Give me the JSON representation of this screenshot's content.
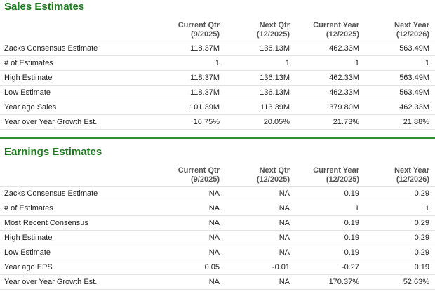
{
  "sections": [
    {
      "title": "Sales Estimates",
      "columns": [
        {
          "name": "Current Qtr",
          "period": "(9/2025)"
        },
        {
          "name": "Next Qtr",
          "period": "(12/2025)"
        },
        {
          "name": "Current Year",
          "period": "(12/2025)"
        },
        {
          "name": "Next Year",
          "period": "(12/2026)"
        }
      ],
      "rows": [
        [
          "Zacks Consensus Estimate",
          "118.37M",
          "136.13M",
          "462.33M",
          "563.49M"
        ],
        [
          "# of Estimates",
          "1",
          "1",
          "1",
          "1"
        ],
        [
          "High Estimate",
          "118.37M",
          "136.13M",
          "462.33M",
          "563.49M"
        ],
        [
          "Low Estimate",
          "118.37M",
          "136.13M",
          "462.33M",
          "563.49M"
        ],
        [
          "Year ago Sales",
          "101.39M",
          "113.39M",
          "379.80M",
          "462.33M"
        ],
        [
          "Year over Year Growth Est.",
          "16.75%",
          "20.05%",
          "21.73%",
          "21.88%"
        ]
      ]
    },
    {
      "title": "Earnings Estimates",
      "columns": [
        {
          "name": "Current Qtr",
          "period": "(9/2025)"
        },
        {
          "name": "Next Qtr",
          "period": "(12/2025)"
        },
        {
          "name": "Current Year",
          "period": "(12/2025)"
        },
        {
          "name": "Next Year",
          "period": "(12/2026)"
        }
      ],
      "rows": [
        [
          "Zacks Consensus Estimate",
          "NA",
          "NA",
          "0.19",
          "0.29"
        ],
        [
          "# of Estimates",
          "NA",
          "NA",
          "1",
          "1"
        ],
        [
          "Most Recent Consensus",
          "NA",
          "NA",
          "0.19",
          "0.29"
        ],
        [
          "High Estimate",
          "NA",
          "NA",
          "0.19",
          "0.29"
        ],
        [
          "Low Estimate",
          "NA",
          "NA",
          "0.19",
          "0.29"
        ],
        [
          "Year ago EPS",
          "0.05",
          "-0.01",
          "-0.27",
          "0.19"
        ],
        [
          "Year over Year Growth Est.",
          "NA",
          "NA",
          "170.37%",
          "52.63%"
        ]
      ]
    }
  ]
}
